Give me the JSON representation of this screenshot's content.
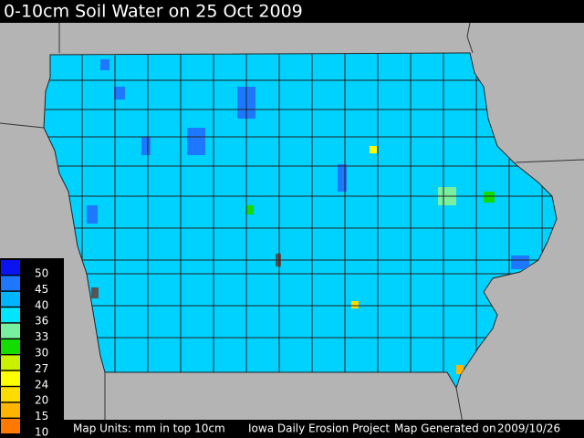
{
  "title": "0-10cm Soil Water on 25 Oct 2009",
  "legend": [
    {
      "value": 50,
      "color": "#0a14f0"
    },
    {
      "value": 45,
      "color": "#1e78ff"
    },
    {
      "value": 40,
      "color": "#00b4ff"
    },
    {
      "value": 36,
      "color": "#00e6ff"
    },
    {
      "value": 33,
      "color": "#78f0a0"
    },
    {
      "value": 30,
      "color": "#14dc00"
    },
    {
      "value": 27,
      "color": "#c8f000"
    },
    {
      "value": 24,
      "color": "#ffff00"
    },
    {
      "value": 20,
      "color": "#ffdc00"
    },
    {
      "value": 15,
      "color": "#ffb400"
    },
    {
      "value": 10,
      "color": "#ff7800"
    }
  ],
  "footer": {
    "units": "Map Units: mm in top 10cm",
    "project": "Iowa Daily Erosion Project",
    "generated_label": "Map Generated on",
    "generated_date": "2009/10/26"
  }
}
